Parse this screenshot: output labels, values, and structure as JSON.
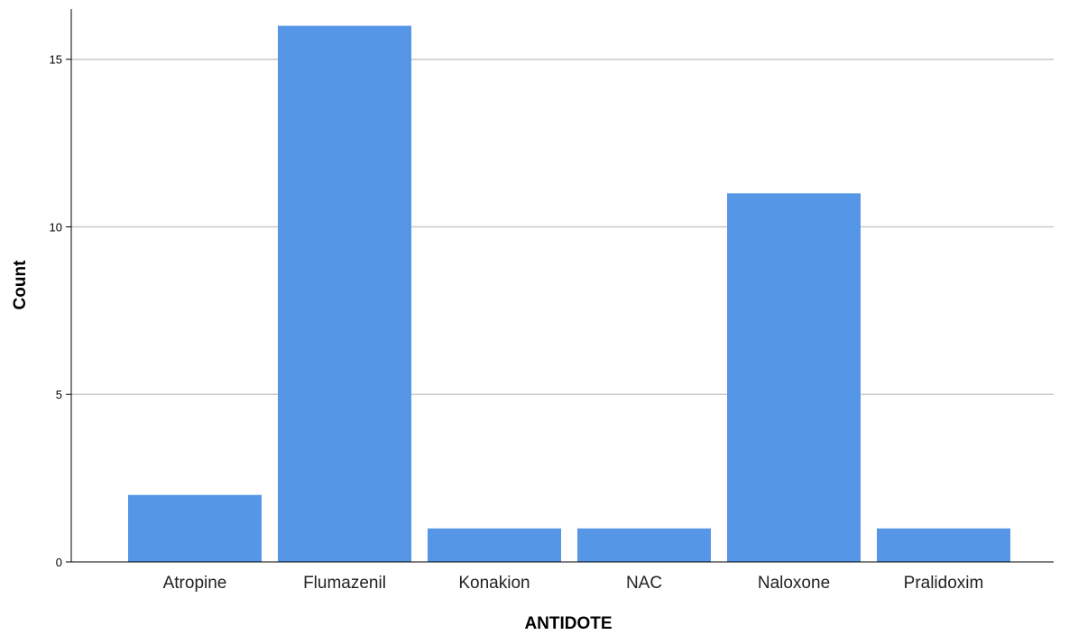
{
  "chart_data": {
    "type": "bar",
    "categories": [
      "Atropine",
      "Flumazenil",
      "Konakion",
      "NAC",
      "Naloxone",
      "Pralidoxim"
    ],
    "values": [
      2,
      16,
      1,
      1,
      11,
      1
    ],
    "xlabel": "ANTIDOTE",
    "ylabel": "Count",
    "ylim": [
      0,
      16.5
    ],
    "yticks": [
      0,
      5,
      10,
      15
    ],
    "grid": "horizontal",
    "bar_color": "#5596e6",
    "grid_color": "#c8c8c8",
    "axis_color": "#000000"
  }
}
